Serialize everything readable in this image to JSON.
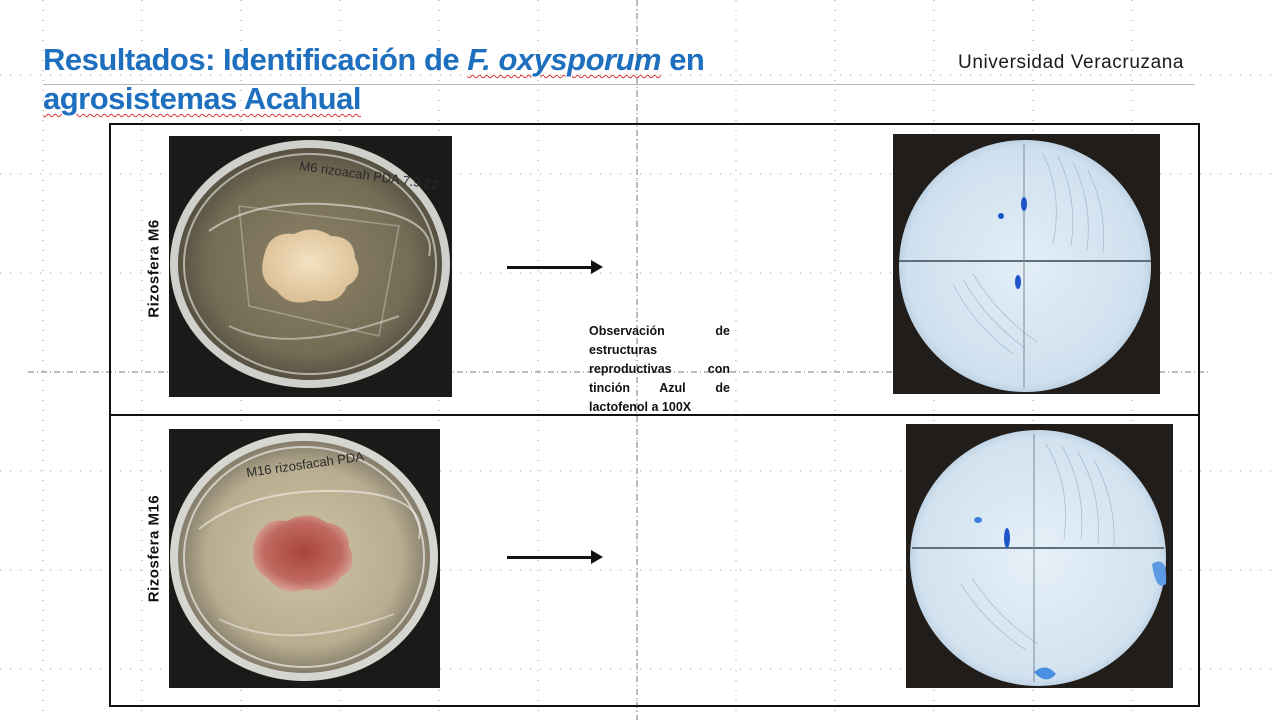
{
  "header": {
    "title_part1": "Resultados: Identificación de ",
    "title_species": "F. oxysporum",
    "title_part2": " en",
    "title_line2": "agrosistemas Acahual",
    "institution": "Universidad Veracruzana"
  },
  "rows": [
    {
      "label": "Rizosfera M6",
      "plate_writing": "M6 rizoacah PDA 7.9.22",
      "colony_color": "#e8cfa6"
    },
    {
      "label": "Rizosfera M16",
      "plate_writing": "M16 rizosfacah PDA",
      "colony_color": "#b85a52"
    }
  ],
  "caption": "Observación de estructuras reproductivas con tinción Azul de lactofenol a 100X",
  "colors": {
    "title_blue": "#1f6fbf",
    "stain_blue": "#1d55c8",
    "field_light": "#dbe8f3"
  }
}
